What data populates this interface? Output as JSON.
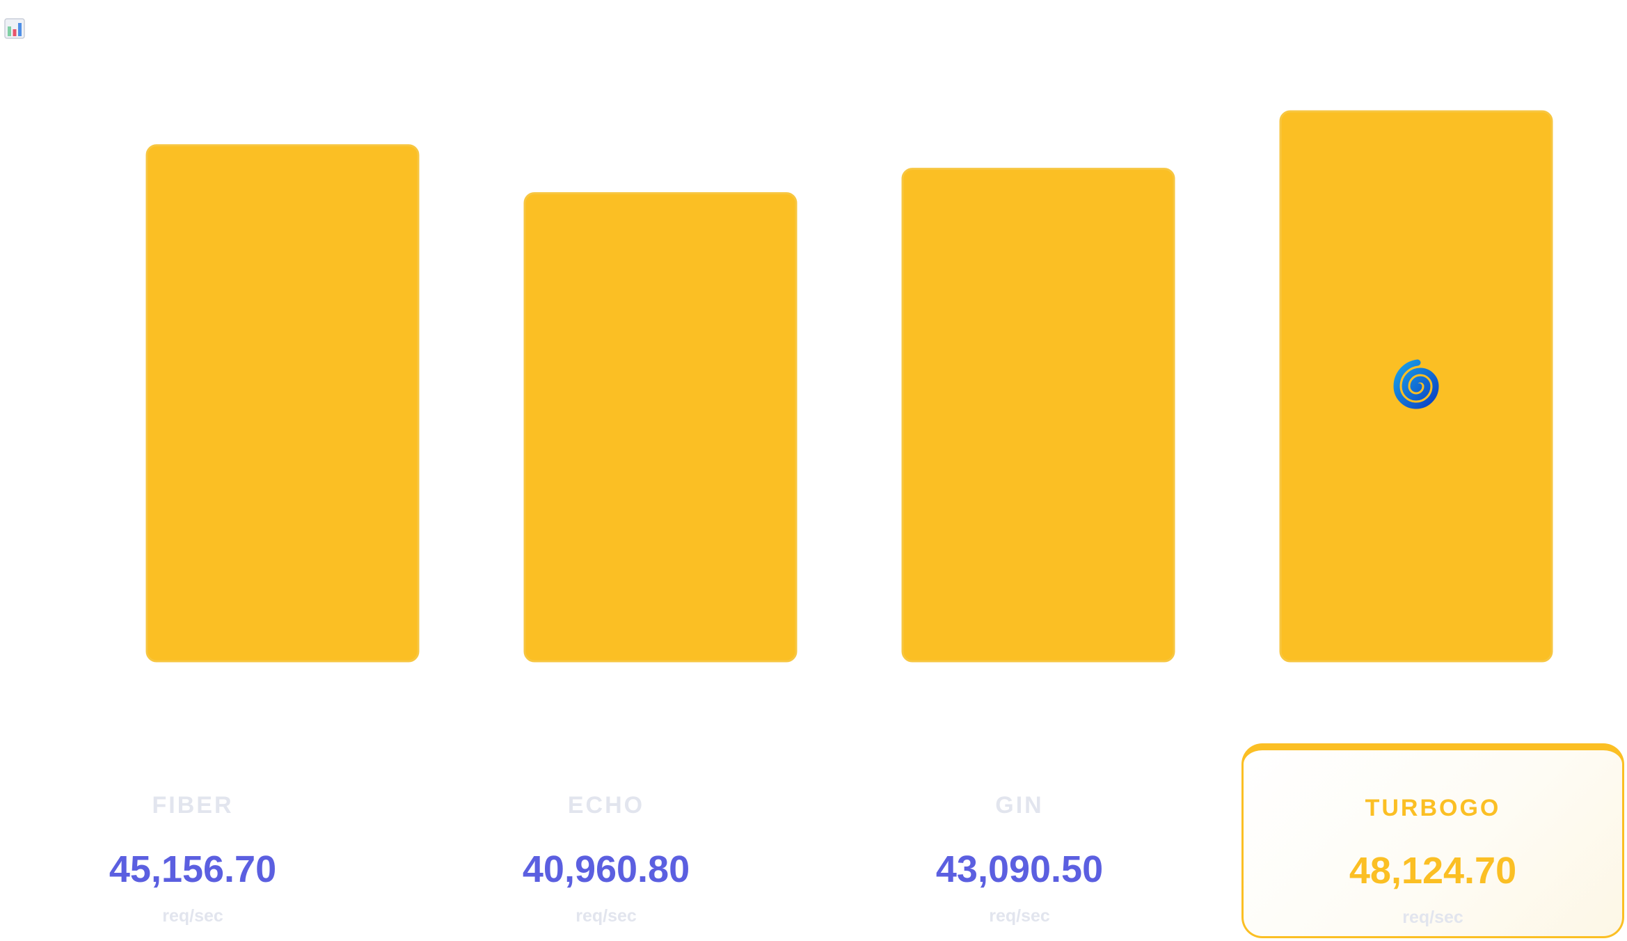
{
  "chart_data": {
    "type": "bar",
    "categories": [
      "FIBER",
      "ECHO",
      "GIN",
      "TURBOGO"
    ],
    "values": [
      45156.7,
      40960.8,
      43090.5,
      48124.7
    ],
    "value_labels": [
      "45,156.70",
      "40,960.80",
      "43,090.50",
      "48,124.70"
    ],
    "unit": "req/sec",
    "highlight": "TURBOGO",
    "ylim": [
      0,
      48124.7
    ],
    "grid": false,
    "legend": "none"
  },
  "colors": {
    "bar": "#fbbf24",
    "value_text": "#5b5fe0",
    "label_text": "#e2e5ee",
    "highlight": "#fbbf24"
  },
  "icons": {
    "app": "bar-chart-icon",
    "winner_badge": "spiral-icon"
  }
}
